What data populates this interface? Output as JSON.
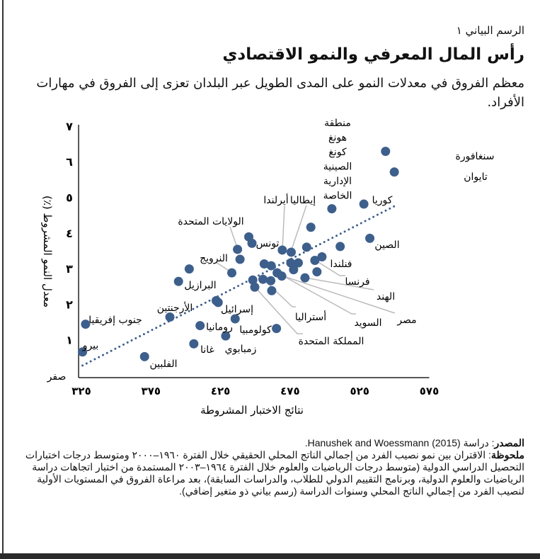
{
  "header": {
    "figure_number": "الرسم البياني ١",
    "title": "رأس المال المعرفي والنمو الاقتصادي",
    "subtitle": "معظم الفروق في معدلات النمو على المدى الطويل عبر البلدان تعزى إلى الفروق في مهارات الأفراد."
  },
  "footer": {
    "source_label": "المصدر",
    "source_text": ": دراسة (2015) Hanushek and Woessmann.",
    "note_label": "ملحوظة",
    "note_text": ": الاقتران بين نمو نصيب الفرد من إجمالي الناتج المحلي الحقيقي خلال الفترة ١٩٦٠–٢٠٠٠ ومتوسط درجات اختبارات التحصيل الدراسي الدولية (متوسط درجات الرياضيات والعلوم خلال الفترة ١٩٦٤–٢٠٠٣ المستمدة من اختبار اتجاهات دراسة الرياضيات والعلوم الدولية، وبرنامج التقييم الدولي للطلاب، والدراسات السابقة)، بعد مراعاة الفروق في المستويات الأولية لنصيب الفرد من إجمالي الناتج المحلي وسنوات الدراسة (رسم بياني ذو متغير إضافي)."
  },
  "chart_data": {
    "type": "scatter",
    "xlabel": "نتائج الاختبار المشروطة",
    "ylabel": "معدل النمو المشروط (٪)",
    "xlim": [
      323,
      575
    ],
    "ylim": [
      0,
      7
    ],
    "x_ticks": [
      325,
      375,
      425,
      475,
      525,
      575
    ],
    "x_tick_labels": [
      "٣٢٥",
      "٣٧٥",
      "٤٢٥",
      "٤٧٥",
      "٥٢٥",
      "٥٧٥"
    ],
    "y_ticks": [
      0,
      1,
      2,
      3,
      4,
      5,
      6,
      7
    ],
    "y_tick_labels": [
      "صفر",
      "١",
      "٢",
      "٣",
      "٤",
      "٥",
      "٦",
      "٧"
    ],
    "grid": false,
    "marker_color": "#3d5f8c",
    "trend_color": "#3d5f8c",
    "trendline": {
      "style": "dotted",
      "x": [
        325.8,
        549.9
      ],
      "y": [
        0.28,
        4.75
      ]
    },
    "points": [
      {
        "x": 543.6,
        "y": 6.29,
        "label": "سنغافورة"
      },
      {
        "x": 549.9,
        "y": 5.71,
        "label": "تايوان"
      },
      {
        "x": 528.0,
        "y": 4.81,
        "label": "كوريا"
      },
      {
        "x": 505.0,
        "y": 4.68,
        "label": "منطقة هونغ كونغ الصينية الإدارية الخاصة"
      },
      {
        "x": 532.3,
        "y": 3.85,
        "label": "الصين"
      },
      {
        "x": 511.0,
        "y": 3.62,
        "label": ""
      },
      {
        "x": 497.9,
        "y": 3.33,
        "label": "فنلندا"
      },
      {
        "x": 492.8,
        "y": 3.23,
        "label": "فرنسا"
      },
      {
        "x": 494.3,
        "y": 2.91,
        "label": ""
      },
      {
        "x": 485.7,
        "y": 2.74,
        "label": "الهند"
      },
      {
        "x": 489.9,
        "y": 4.16,
        "label": ""
      },
      {
        "x": 486.9,
        "y": 3.6,
        "label": ""
      },
      {
        "x": 480.9,
        "y": 3.16,
        "label": ""
      },
      {
        "x": 475.5,
        "y": 3.16,
        "label": ""
      },
      {
        "x": 477.5,
        "y": 2.97,
        "label": ""
      },
      {
        "x": 475.8,
        "y": 3.46,
        "label": "إيطاليا"
      },
      {
        "x": 469.4,
        "y": 3.52,
        "label": "أيرلندا"
      },
      {
        "x": 437.2,
        "y": 3.54,
        "label": "الولايات المتحدة"
      },
      {
        "x": 445.3,
        "y": 3.89,
        "label": ""
      },
      {
        "x": 447.6,
        "y": 3.71,
        "label": "تونس"
      },
      {
        "x": 439.0,
        "y": 3.26,
        "label": ""
      },
      {
        "x": 433.1,
        "y": 2.88,
        "label": "النرويج"
      },
      {
        "x": 456.4,
        "y": 3.13,
        "label": ""
      },
      {
        "x": 461.4,
        "y": 3.08,
        "label": ""
      },
      {
        "x": 465.7,
        "y": 2.88,
        "label": "السويد"
      },
      {
        "x": 469.0,
        "y": 2.79,
        "label": "مصر"
      },
      {
        "x": 455.5,
        "y": 2.7,
        "label": "أستراليا"
      },
      {
        "x": 461.1,
        "y": 2.66,
        "label": ""
      },
      {
        "x": 461.8,
        "y": 2.38,
        "label": ""
      },
      {
        "x": 448.2,
        "y": 2.68,
        "label": ""
      },
      {
        "x": 449.6,
        "y": 2.48,
        "label": "المملكة المتحدة"
      },
      {
        "x": 465.2,
        "y": 1.32,
        "label": "كولومبيا"
      },
      {
        "x": 394.8,
        "y": 2.64,
        "label": "البرازيل"
      },
      {
        "x": 402.5,
        "y": 2.99,
        "label": ""
      },
      {
        "x": 388.6,
        "y": 1.64,
        "label": "الأرجنتين"
      },
      {
        "x": 421.9,
        "y": 2.1,
        "label": ""
      },
      {
        "x": 423.3,
        "y": 2.05,
        "label": "إسرائيل"
      },
      {
        "x": 328.0,
        "y": 1.44,
        "label": "جنوب إفريقيا"
      },
      {
        "x": 325.8,
        "y": 0.66,
        "label": "بيرو"
      },
      {
        "x": 370.4,
        "y": 0.53,
        "label": "الفلبين"
      },
      {
        "x": 410.3,
        "y": 1.4,
        "label": "رومانيا"
      },
      {
        "x": 435.5,
        "y": 1.59,
        "label": ""
      },
      {
        "x": 428.7,
        "y": 1.11,
        "label": "زمبابوي"
      },
      {
        "x": 405.8,
        "y": 0.89,
        "label": "غانا"
      }
    ]
  }
}
